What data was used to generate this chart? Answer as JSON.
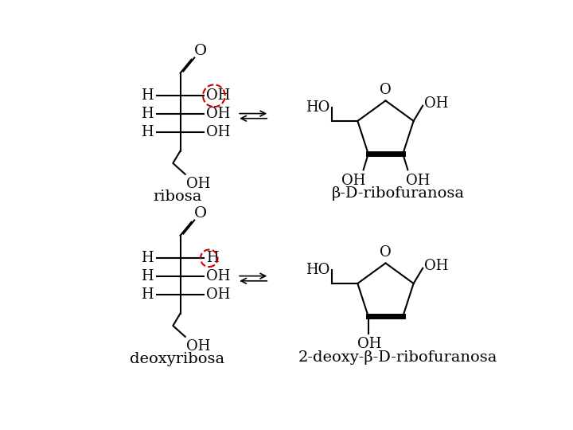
{
  "bg_color": "#ffffff",
  "label_fontsize": 13,
  "circle_color": "#cc0000",
  "ribosa_label": "ribosa",
  "deoxyribosa_label": "deoxyribosa",
  "beta_ribofuranosa_label": "β-D-ribofuranosa",
  "deoxy_beta_ribofuranosa_label": "2-deoxy-β-D-ribofuranosa"
}
